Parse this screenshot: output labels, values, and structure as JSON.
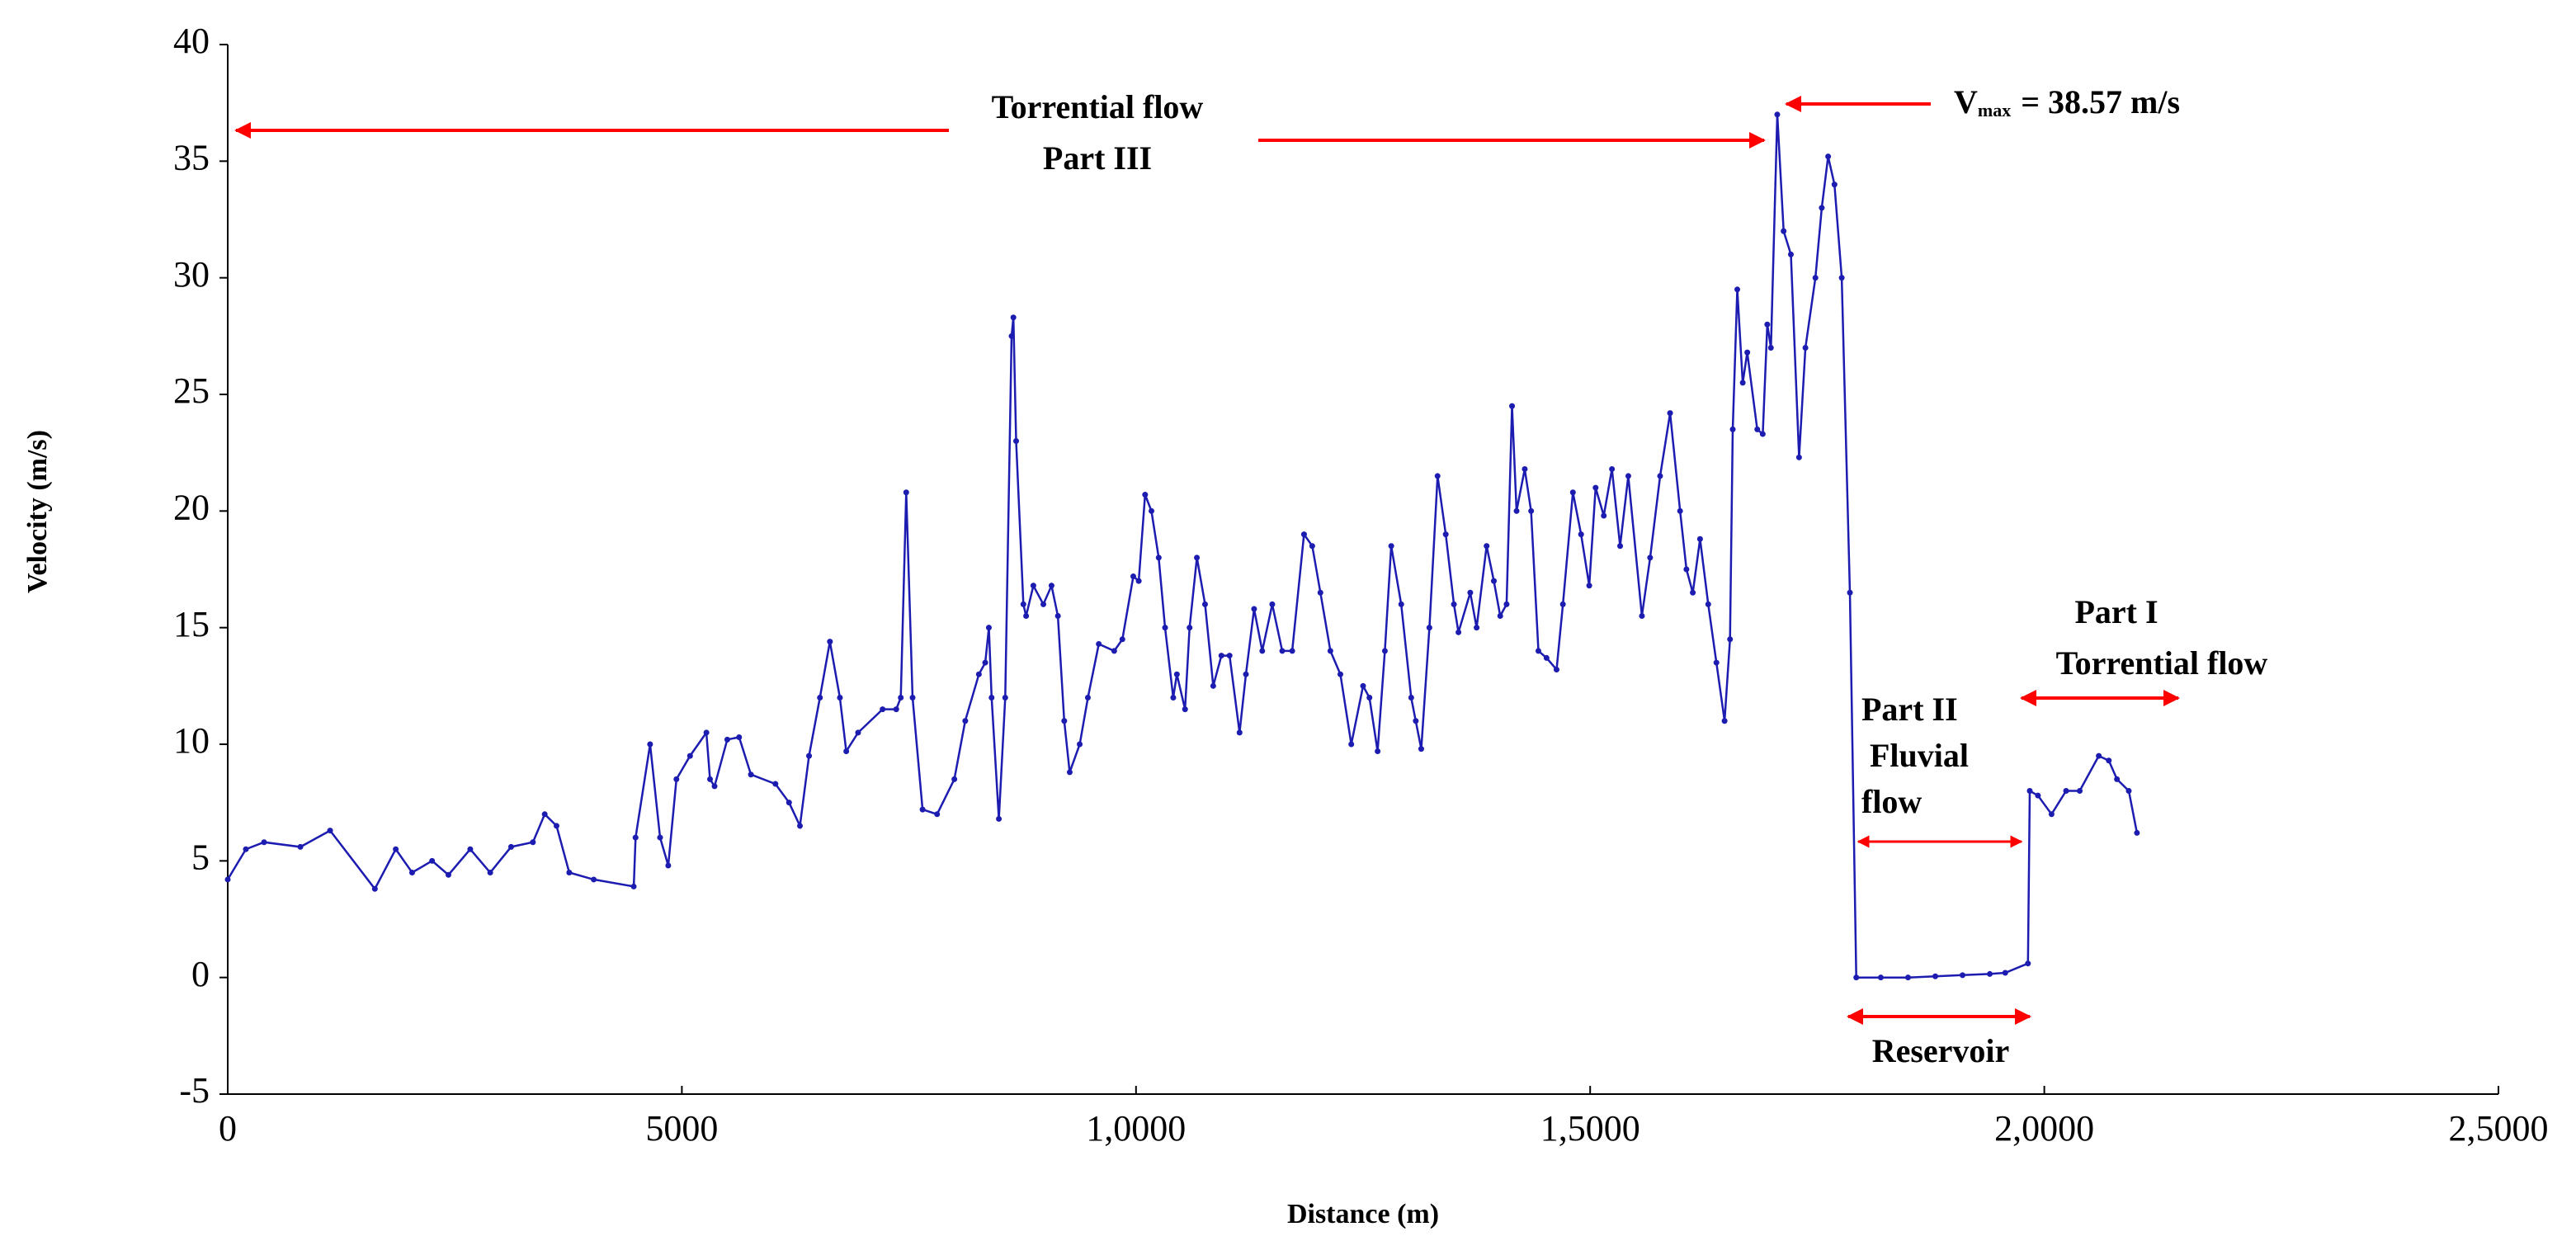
{
  "chart_data": {
    "type": "line",
    "x_label": "Distance (m)",
    "y_label": "Velocity (m/s)",
    "xlim": [
      0,
      25000
    ],
    "xticks": [
      0,
      5000,
      {
        "value": 10000,
        "label": "1,0000"
      },
      {
        "value": 15000,
        "label": "1,5000"
      },
      {
        "value": 20000,
        "label": "2,0000"
      },
      {
        "value": 25000,
        "label": "2,5000"
      }
    ],
    "ylim": [
      -5,
      40
    ],
    "yticks": [
      -5,
      0,
      5,
      10,
      15,
      20,
      25,
      30,
      35,
      40
    ],
    "series": [
      {
        "color": "#1c1cb0",
        "x": [
          0,
          200,
          400,
          800,
          1127,
          1620,
          1850,
          2030,
          2250,
          2430,
          2670,
          2890,
          3120,
          3360,
          3490,
          3620,
          3760,
          4030,
          4470,
          4490,
          4650,
          4760,
          4850,
          4940,
          5090,
          5270,
          5310,
          5360,
          5500,
          5630,
          5760,
          6030,
          6180,
          6300,
          6400,
          6520,
          6630,
          6740,
          6810,
          6940,
          7210,
          7360,
          7410,
          7470,
          7540,
          7650,
          7810,
          8000,
          8120,
          8270,
          8340,
          8380,
          8410,
          8490,
          8560,
          8630,
          8650,
          8680,
          8760,
          8790,
          8870,
          8980,
          9070,
          9140,
          9210,
          9270,
          9380,
          9470,
          9590,
          9760,
          9850,
          9970,
          10030,
          10100,
          10170,
          10250,
          10320,
          10410,
          10450,
          10540,
          10590,
          10670,
          10760,
          10850,
          10940,
          11030,
          11140,
          11210,
          11300,
          11390,
          11500,
          11610,
          11720,
          11850,
          11940,
          12030,
          12140,
          12250,
          12370,
          12500,
          12570,
          12660,
          12740,
          12810,
          12920,
          13030,
          13080,
          13140,
          13230,
          13320,
          13410,
          13500,
          13550,
          13680,
          13750,
          13860,
          13940,
          14010,
          14080,
          14140,
          14190,
          14280,
          14350,
          14430,
          14520,
          14630,
          14700,
          14810,
          14900,
          14990,
          15060,
          15150,
          15240,
          15330,
          15420,
          15570,
          15660,
          15770,
          15880,
          15990,
          16060,
          16130,
          16210,
          16300,
          16390,
          16480,
          16540,
          16570,
          16620,
          16680,
          16730,
          16840,
          16900,
          16950,
          16990,
          17060,
          17130,
          17210,
          17300,
          17370,
          17480,
          17550,
          17620,
          17690,
          17770,
          17860,
          17930,
          18200,
          18500,
          18800,
          19100,
          19400,
          19570,
          19820,
          19840,
          19930,
          20080,
          20240,
          20390,
          20600,
          20710,
          20800,
          20930,
          21020
        ],
        "values": [
          4.2,
          5.5,
          5.8,
          5.6,
          6.3,
          3.8,
          5.5,
          4.5,
          5,
          4.4,
          5.5,
          4.5,
          5.6,
          5.8,
          7,
          6.5,
          4.5,
          4.2,
          3.9,
          6,
          10,
          6,
          4.8,
          8.5,
          9.5,
          10.5,
          8.5,
          8.2,
          10.2,
          10.3,
          8.7,
          8.3,
          7.5,
          6.5,
          9.5,
          12,
          14.4,
          12,
          9.7,
          10.5,
          11.5,
          11.5,
          12,
          20.8,
          12,
          7.2,
          7,
          8.5,
          11,
          13,
          13.5,
          15,
          12,
          6.8,
          12,
          27.5,
          28.3,
          23,
          16,
          15.5,
          16.8,
          16,
          16.8,
          15.5,
          11,
          8.8,
          10,
          12,
          14.3,
          14,
          14.5,
          17.2,
          17,
          20.7,
          20,
          18,
          15,
          12,
          13,
          11.5,
          15,
          18,
          16,
          12.5,
          13.8,
          13.8,
          10.5,
          13,
          15.8,
          14,
          16,
          14,
          14,
          19,
          18.5,
          16.5,
          14,
          13,
          10,
          12.5,
          12,
          9.7,
          14,
          18.5,
          16,
          12,
          11,
          9.8,
          15,
          21.5,
          19,
          16,
          14.8,
          16.5,
          15,
          18.5,
          17,
          15.5,
          16,
          24.5,
          20,
          21.8,
          20,
          14,
          13.7,
          13.2,
          16,
          20.8,
          19,
          16.8,
          21,
          19.8,
          21.8,
          18.5,
          21.5,
          15.5,
          18,
          21.5,
          24.2,
          20,
          17.5,
          16.5,
          18.8,
          16,
          13.5,
          11,
          14.5,
          23.5,
          29.5,
          25.5,
          26.8,
          23.5,
          23.3,
          28,
          27,
          37,
          32,
          31,
          22.3,
          27,
          30,
          33,
          35.2,
          34,
          30,
          16.5,
          0,
          0,
          0,
          0.05,
          0.1,
          0.15,
          0.2,
          0.6,
          8,
          7.8,
          7,
          8,
          8,
          9.5,
          9.3,
          8.5,
          8,
          6.2
        ]
      }
    ],
    "annotations": [
      {
        "lines": [
          "Torrential flow",
          "Part III"
        ]
      },
      {
        "main": "V",
        "sub": "max",
        "rest": "= 38.57 m/s"
      },
      {
        "lines": [
          "Part II",
          "Fluvial",
          "flow"
        ]
      },
      {
        "lines": [
          "Part I",
          "Torrential flow"
        ]
      },
      {
        "lines": [
          "Reservoir"
        ]
      }
    ]
  }
}
